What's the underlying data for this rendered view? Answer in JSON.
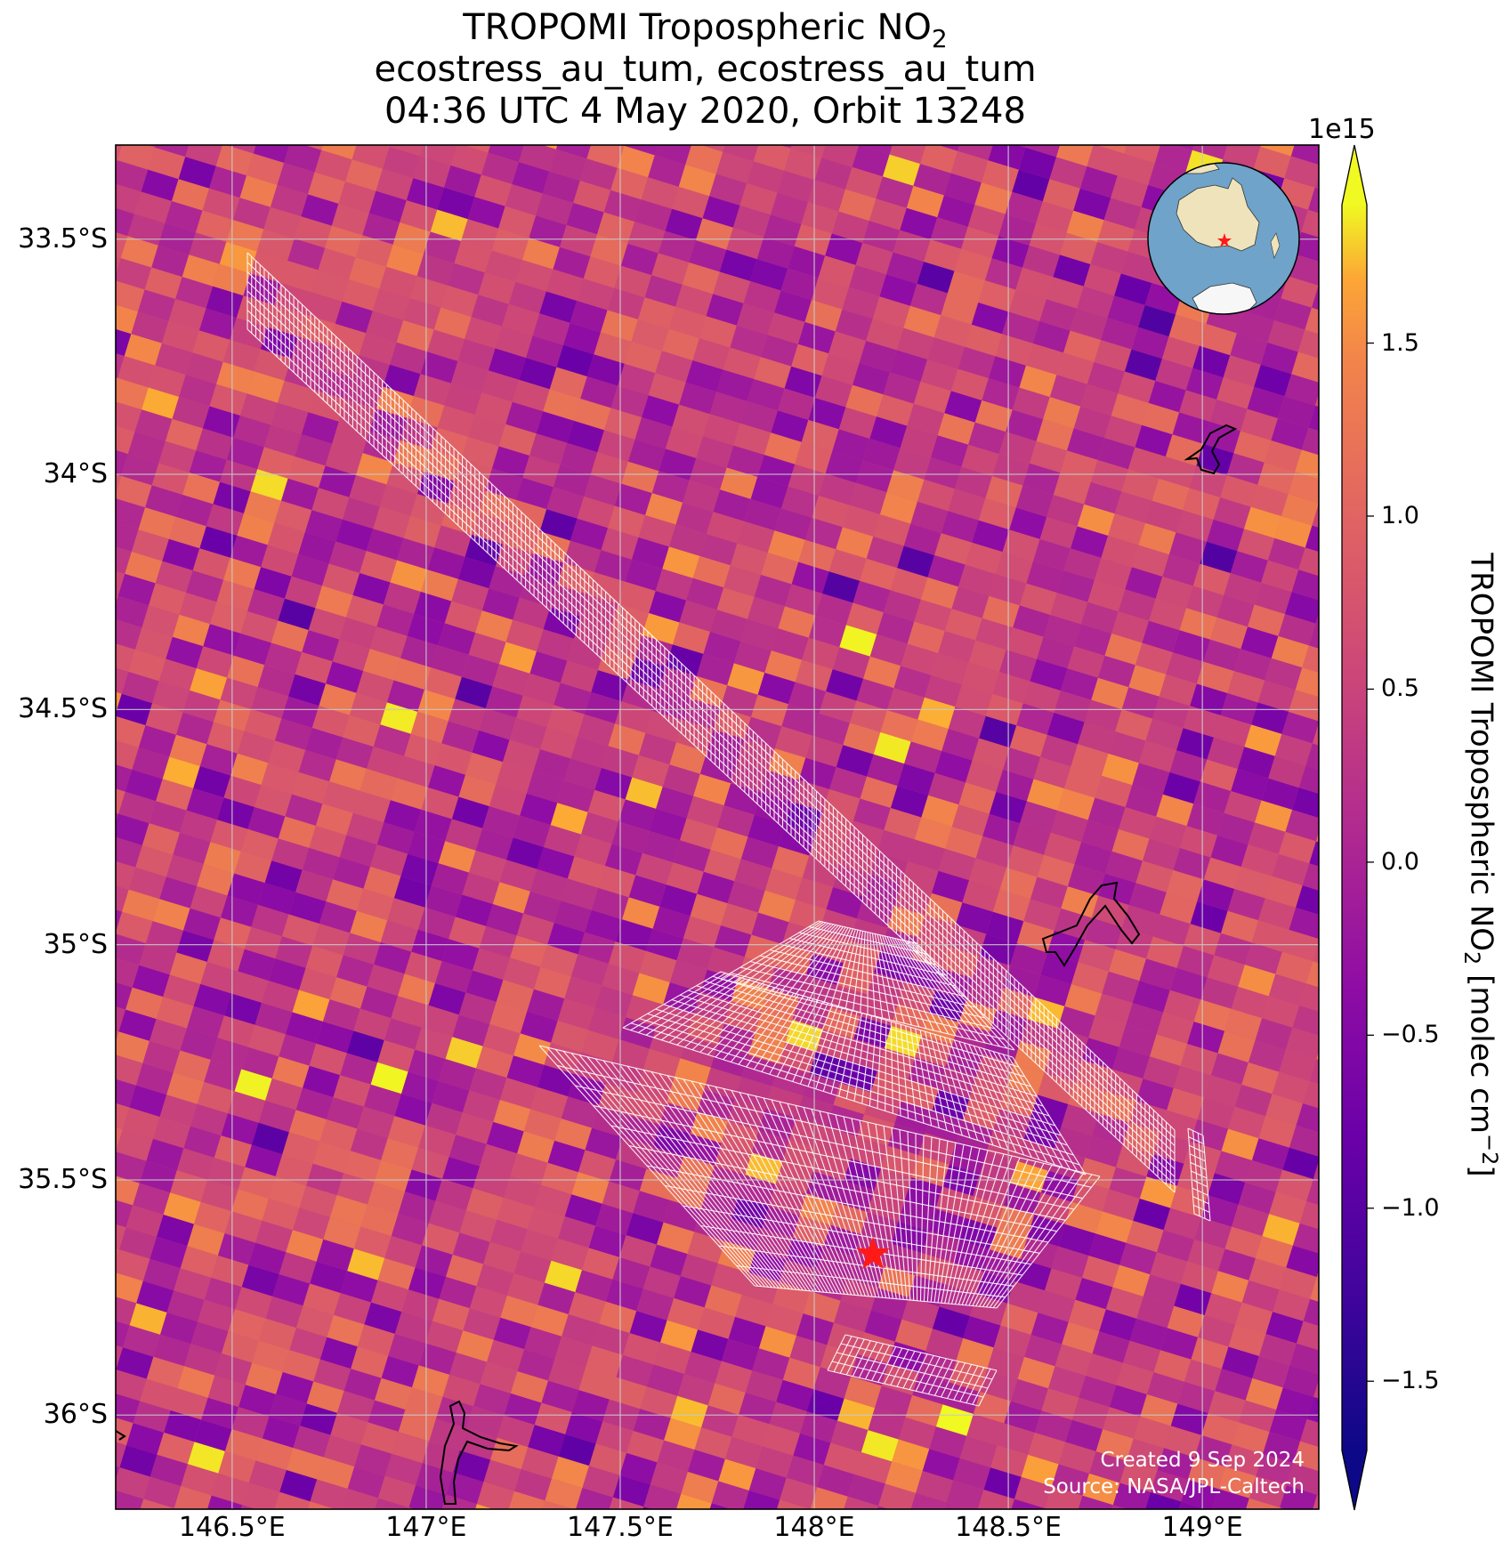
{
  "title": {
    "line1_prefix": "TROPOMI Tropospheric NO",
    "line1_sub": "2",
    "line2": "ecostress_au_tum, ecostress_au_tum",
    "line3": "04:36 UTC 4 May 2020, Orbit 13248"
  },
  "map": {
    "lon_range": [
      146.2,
      149.3
    ],
    "lat_range": [
      -36.2,
      -33.3
    ],
    "grid": true,
    "lat_ticks": [
      {
        "value": -33.5,
        "label": "33.5°S"
      },
      {
        "value": -34.0,
        "label": "34°S"
      },
      {
        "value": -34.5,
        "label": "34.5°S"
      },
      {
        "value": -35.0,
        "label": "35°S"
      },
      {
        "value": -35.5,
        "label": "35.5°S"
      },
      {
        "value": -36.0,
        "label": "36°S"
      }
    ],
    "lon_ticks": [
      {
        "value": 146.5,
        "label": "146.5°E"
      },
      {
        "value": 147.0,
        "label": "147°E"
      },
      {
        "value": 147.5,
        "label": "147.5°E"
      },
      {
        "value": 148.0,
        "label": "148°E"
      },
      {
        "value": 148.5,
        "label": "148.5°E"
      },
      {
        "value": 149.0,
        "label": "149°E"
      }
    ],
    "site_marker": {
      "lon": 148.15,
      "lat": -35.66,
      "color": "#ff1a1a",
      "shape": "star"
    },
    "inset_globe": {
      "region": "Australia",
      "marker_color": "#ff1a1a"
    },
    "overlay_color": "#ffffff",
    "boundary_color": "#000000"
  },
  "colorbar": {
    "colormap": "plasma",
    "range": [
      -1.7,
      1.9
    ],
    "extend": "both",
    "exponent_label": "1e15",
    "ticks": [
      {
        "value": 1.5,
        "label": "1.5"
      },
      {
        "value": 1.0,
        "label": "1.0"
      },
      {
        "value": 0.5,
        "label": "0.5"
      },
      {
        "value": 0.0,
        "label": "0.0"
      },
      {
        "value": -0.5,
        "label": "−0.5"
      },
      {
        "value": -1.0,
        "label": "−1.0"
      },
      {
        "value": -1.5,
        "label": "−1.5"
      }
    ],
    "label_prefix": "TROPOMI Tropospheric NO",
    "label_sub": "2",
    "label_mid": " [molec cm",
    "label_sup": "−2",
    "label_suffix": "]"
  },
  "credits": {
    "created": "Created 9 Sep 2024",
    "source": "Source: NASA/JPL-Caltech"
  }
}
